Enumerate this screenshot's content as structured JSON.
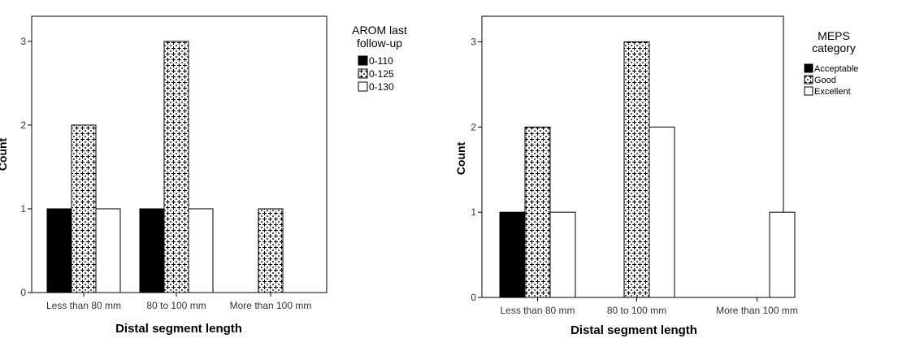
{
  "chart_data": [
    {
      "type": "bar",
      "xlabel": "Distal segment length",
      "ylabel": "Count",
      "categories": [
        "Less than 80 mm",
        "80 to 100 mm",
        "More than 100 mm"
      ],
      "yticks": [
        "0",
        "1",
        "2",
        "3"
      ],
      "ylim": [
        0,
        3.3
      ],
      "legend_title": [
        "AROM last",
        "follow-up"
      ],
      "legend_position": "right",
      "series": [
        {
          "name": "0-110",
          "pattern": "solid-black",
          "values": [
            1,
            1,
            0
          ]
        },
        {
          "name": "0-125",
          "pattern": "crosshatch",
          "values": [
            2,
            3,
            1
          ]
        },
        {
          "name": "0-130",
          "pattern": "white",
          "values": [
            1,
            1,
            0
          ]
        }
      ]
    },
    {
      "type": "bar",
      "xlabel": "Distal segment length",
      "ylabel": "Count",
      "categories": [
        "Less than 80 mm",
        "80 to 100 mm",
        "More than 100 mm"
      ],
      "yticks": [
        "0",
        "1",
        "2",
        "3"
      ],
      "ylim": [
        0,
        3.3
      ],
      "legend_title": [
        "MEPS",
        "category"
      ],
      "legend_position": "right",
      "series": [
        {
          "name": "Acceptable",
          "pattern": "solid-black",
          "values": [
            1,
            0,
            0
          ]
        },
        {
          "name": "Good",
          "pattern": "crosshatch",
          "values": [
            2,
            3,
            0
          ]
        },
        {
          "name": "Excellent",
          "pattern": "white",
          "values": [
            1,
            2,
            1
          ]
        }
      ]
    }
  ]
}
